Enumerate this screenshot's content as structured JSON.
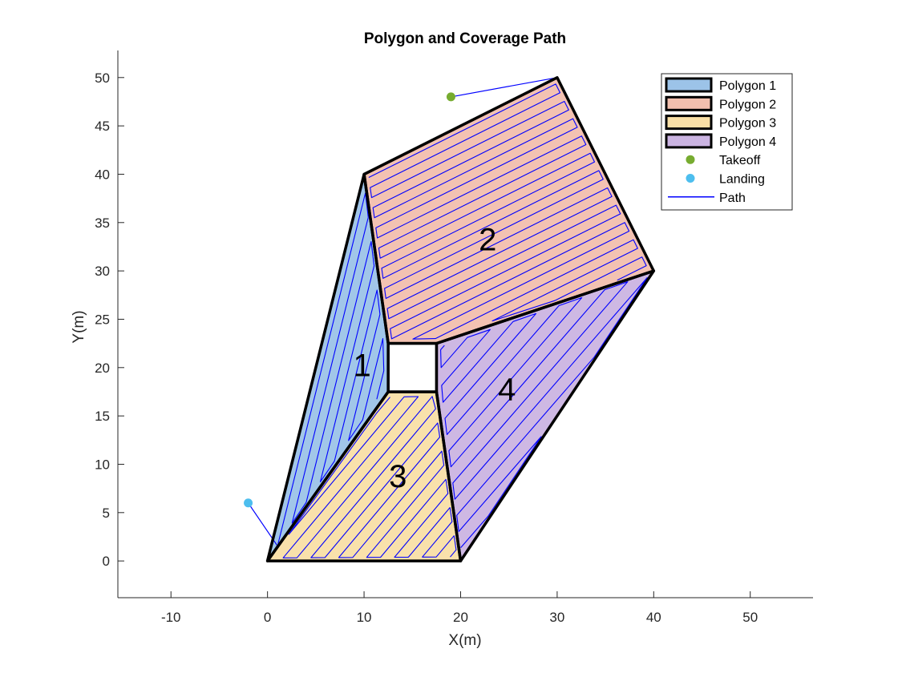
{
  "chart_data": {
    "type": "polygon-map",
    "title": "Polygon and Coverage Path",
    "xlabel": "X(m)",
    "ylabel": "Y(m)",
    "xlim": [
      -15.5,
      56.5
    ],
    "ylim": [
      -3.8,
      52.8
    ],
    "xticks": [
      -10,
      0,
      10,
      20,
      30,
      40,
      50
    ],
    "yticks": [
      0,
      5,
      10,
      15,
      20,
      25,
      30,
      35,
      40,
      45,
      50
    ],
    "grid": false,
    "legend_position": "top-right",
    "polygons": [
      {
        "name": "Polygon 1",
        "label": "1",
        "label_at": [
          9.8,
          20
        ],
        "fill": "#9cc3e8",
        "vertices": [
          [
            0,
            0
          ],
          [
            10,
            40
          ],
          [
            12.5,
            22.5
          ],
          [
            12.5,
            17.5
          ]
        ]
      },
      {
        "name": "Polygon 2",
        "label": "2",
        "label_at": [
          22.8,
          33
        ],
        "fill": "#f2bfae",
        "vertices": [
          [
            10,
            40
          ],
          [
            30,
            50
          ],
          [
            40,
            30
          ],
          [
            17.5,
            22.5
          ],
          [
            12.5,
            22.5
          ]
        ]
      },
      {
        "name": "Polygon 3",
        "label": "3",
        "label_at": [
          13.5,
          8.5
        ],
        "fill": "#f9dfa6",
        "vertices": [
          [
            0,
            0
          ],
          [
            12.5,
            17.5
          ],
          [
            17.5,
            17.5
          ],
          [
            20,
            0
          ]
        ]
      },
      {
        "name": "Polygon 4",
        "label": "4",
        "label_at": [
          24.8,
          17.5
        ],
        "fill": "#cbb4e2",
        "vertices": [
          [
            17.5,
            22.5
          ],
          [
            40,
            30
          ],
          [
            20,
            0
          ],
          [
            17.5,
            17.5
          ]
        ]
      }
    ],
    "obstacle": {
      "vertices": [
        [
          12.5,
          17.5
        ],
        [
          17.5,
          17.5
        ],
        [
          17.5,
          22.5
        ],
        [
          12.5,
          22.5
        ]
      ]
    },
    "takeoff": {
      "name": "Takeoff",
      "point": [
        19,
        48
      ],
      "color": "#77ac30"
    },
    "landing": {
      "name": "Landing",
      "point": [
        -2,
        6
      ],
      "color": "#4dbeee"
    },
    "path": {
      "name": "Path",
      "color": "#0000ff"
    }
  }
}
